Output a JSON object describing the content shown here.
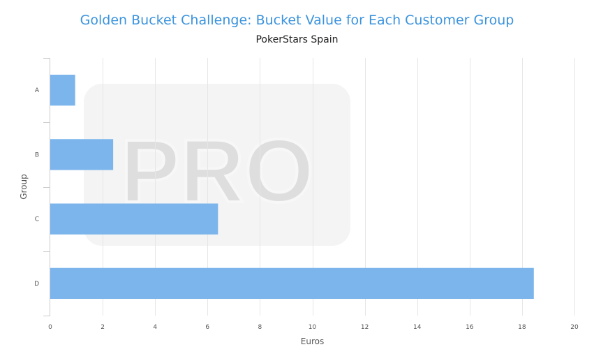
{
  "chart_data": {
    "type": "bar",
    "orientation": "horizontal",
    "title": "Golden Bucket Challenge: Bucket Value for Each Customer Group",
    "subtitle": "PokerStars Spain",
    "xlabel": "Euros",
    "ylabel": "Group",
    "categories": [
      "A",
      "B",
      "C",
      "D"
    ],
    "values": [
      0.95,
      2.4,
      6.4,
      18.45
    ],
    "xlim": [
      0,
      20
    ],
    "xticks": [
      0,
      2,
      4,
      6,
      8,
      10,
      12,
      14,
      16,
      18,
      20
    ],
    "grid": true,
    "bar_color": "#7cb5ec",
    "title_color": "#3a93dd",
    "watermark": "PRO"
  }
}
